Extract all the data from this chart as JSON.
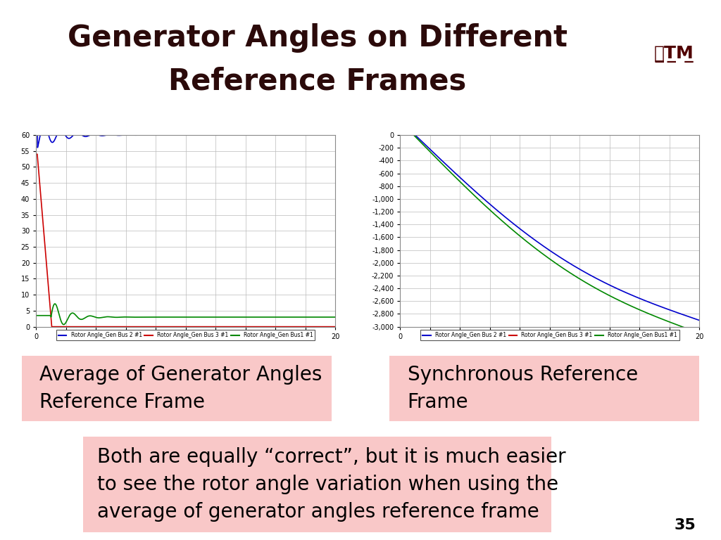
{
  "title_line1": "Generator Angles on Different",
  "title_line2": "Reference Frames",
  "title_color": "#2B0A0A",
  "title_fontsize": 30,
  "title_fontweight": "bold",
  "background_color": "#FFFFFF",
  "dark_bar_color": "#1A0000",
  "page_number": "35",
  "left_plot": {
    "ylim": [
      0,
      60
    ],
    "xlim": [
      0,
      20
    ],
    "yticks": [
      0,
      5,
      10,
      15,
      20,
      25,
      30,
      35,
      40,
      45,
      50,
      55,
      60
    ],
    "xticks": [
      0,
      2,
      4,
      6,
      8,
      10,
      12,
      14,
      16,
      18,
      20
    ],
    "lines": [
      {
        "color": "#0000CC",
        "label": "Rotor Angle_Gen Bus 2 #1"
      },
      {
        "color": "#CC0000",
        "label": "Rotor Angle_Gen Bus 3 #1"
      },
      {
        "color": "#008800",
        "label": "Rotor Angle_Gen Bus1 #1"
      }
    ]
  },
  "right_plot": {
    "ylim": [
      -3000,
      0
    ],
    "xlim": [
      0,
      20
    ],
    "yticks": [
      0,
      -200,
      -400,
      -600,
      -800,
      -1000,
      -1200,
      -1400,
      -1600,
      -1800,
      -2000,
      -2200,
      -2400,
      -2600,
      -2800,
      -3000
    ],
    "xticks": [
      0,
      2,
      4,
      6,
      8,
      10,
      12,
      14,
      16,
      18,
      20
    ],
    "lines": [
      {
        "color": "#0000CC",
        "label": "Rotor Angle_Gen Bus 2 #1"
      },
      {
        "color": "#CC0000",
        "label": "Rotor Angle_Gen Bus 3 #1"
      },
      {
        "color": "#008800",
        "label": "Rotor Angle_Gen Bus1 #1"
      }
    ]
  },
  "label_left": "Average of Generator Angles\nReference Frame",
  "label_right": "Synchronous Reference\nFrame",
  "label_fontsize": 20,
  "label_bg": "#F9C8C8",
  "bottom_text": "Both are equally “correct”, but it is much easier\nto see the rotor angle variation when using the\naverage of generator angles reference frame",
  "bottom_fontsize": 20,
  "bottom_bg": "#F9C8C8"
}
